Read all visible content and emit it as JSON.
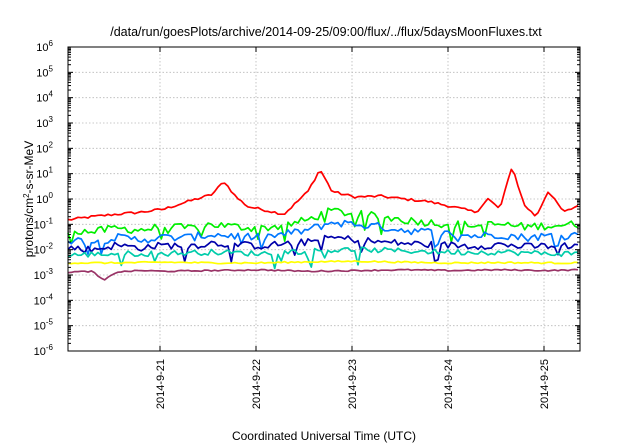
{
  "chart_data": {
    "type": "line",
    "title": "/data/run/goesPlots/archive/2014-09-25/09:00/flux/../flux/5daysMoonFluxes.txt",
    "xlabel": "Coordinated Universal Time (UTC)",
    "ylabel": "protons/cm2-s-sr-MeV",
    "ylabel_parts": {
      "prefix": "protons/cm",
      "sup": "2",
      "suffix": "-s-sr-MeV"
    },
    "y_scale": "log",
    "ylim": [
      1e-06,
      1000000.0
    ],
    "xlim": [
      "2014-09-20T01:00",
      "2014-09-25T09:00"
    ],
    "grid": true,
    "legend": "none",
    "x_ticks": [
      {
        "label": "2014-9-21",
        "value": "2014-09-21T00:00"
      },
      {
        "label": "2014-9-22",
        "value": "2014-09-22T00:00"
      },
      {
        "label": "2014-9-23",
        "value": "2014-09-23T00:00"
      },
      {
        "label": "2014-9-24",
        "value": "2014-09-24T00:00"
      },
      {
        "label": "2014-9-25",
        "value": "2014-09-25T00:00"
      }
    ],
    "y_ticks": [
      {
        "base": "10",
        "exp": "-6",
        "value": 1e-06
      },
      {
        "base": "10",
        "exp": "-5",
        "value": 1e-05
      },
      {
        "base": "10",
        "exp": "-4",
        "value": 0.0001
      },
      {
        "base": "10",
        "exp": "-3",
        "value": 0.001
      },
      {
        "base": "10",
        "exp": "-2",
        "value": 0.01
      },
      {
        "base": "10",
        "exp": "-1",
        "value": 0.1
      },
      {
        "base": "10",
        "exp": "0",
        "value": 1
      },
      {
        "base": "10",
        "exp": "1",
        "value": 10
      },
      {
        "base": "10",
        "exp": "2",
        "value": 100
      },
      {
        "base": "10",
        "exp": "3",
        "value": 1000
      },
      {
        "base": "10",
        "exp": "4",
        "value": 10000
      },
      {
        "base": "10",
        "exp": "5",
        "value": 100000
      },
      {
        "base": "10",
        "exp": "6",
        "value": 1000000
      }
    ],
    "series": [
      {
        "color": "#ff0000",
        "x": [
          "2014-09-20T01:00",
          "2014-09-20T07:00",
          "2014-09-20T13:00",
          "2014-09-20T19:00",
          "2014-09-21T01:00",
          "2014-09-21T07:00",
          "2014-09-21T13:00",
          "2014-09-21T16:00",
          "2014-09-21T19:00",
          "2014-09-21T22:00",
          "2014-09-22T01:00",
          "2014-09-22T07:00",
          "2014-09-22T13:00",
          "2014-09-22T16:00",
          "2014-09-22T19:00",
          "2014-09-22T22:00",
          "2014-09-23T01:00",
          "2014-09-23T07:00",
          "2014-09-23T13:00",
          "2014-09-23T19:00",
          "2014-09-24T01:00",
          "2014-09-24T07:00",
          "2014-09-24T10:00",
          "2014-09-24T13:00",
          "2014-09-24T16:00",
          "2014-09-24T19:00",
          "2014-09-24T22:00",
          "2014-09-25T01:00",
          "2014-09-25T05:00",
          "2014-09-25T09:00"
        ],
        "y": [
          0.15,
          0.2,
          0.25,
          0.3,
          0.4,
          0.8,
          1.5,
          5,
          1.2,
          0.5,
          0.4,
          0.25,
          2,
          15,
          2,
          1.5,
          1.2,
          1.3,
          1,
          0.8,
          0.5,
          0.3,
          1,
          0.4,
          20,
          0.6,
          0.2,
          2,
          0.3,
          0.6
        ]
      },
      {
        "color": "#00ee00",
        "x": [
          "2014-09-20T01:00",
          "2014-09-20T07:00",
          "2014-09-20T13:00",
          "2014-09-20T19:00",
          "2014-09-21T01:00",
          "2014-09-21T07:00",
          "2014-09-21T13:00",
          "2014-09-21T19:00",
          "2014-09-22T01:00",
          "2014-09-22T07:00",
          "2014-09-22T13:00",
          "2014-09-22T19:00",
          "2014-09-23T01:00",
          "2014-09-23T07:00",
          "2014-09-23T13:00",
          "2014-09-23T19:00",
          "2014-09-24T01:00",
          "2014-09-24T07:00",
          "2014-09-24T13:00",
          "2014-09-24T19:00",
          "2014-09-25T01:00",
          "2014-09-25T09:00"
        ],
        "y": [
          0.06,
          0.05,
          0.07,
          0.06,
          0.08,
          0.07,
          0.1,
          0.08,
          0.07,
          0.09,
          0.15,
          0.35,
          0.25,
          0.2,
          0.15,
          0.12,
          0.1,
          0.09,
          0.1,
          0.08,
          0.09,
          0.1
        ]
      },
      {
        "color": "#0077ff",
        "x": [
          "2014-09-20T01:00",
          "2014-09-20T07:00",
          "2014-09-20T13:00",
          "2014-09-20T19:00",
          "2014-09-21T01:00",
          "2014-09-21T07:00",
          "2014-09-21T13:00",
          "2014-09-21T19:00",
          "2014-09-22T01:00",
          "2014-09-22T07:00",
          "2014-09-22T13:00",
          "2014-09-22T19:00",
          "2014-09-23T01:00",
          "2014-09-23T07:00",
          "2014-09-23T13:00",
          "2014-09-23T19:00",
          "2014-09-24T01:00",
          "2014-09-24T07:00",
          "2014-09-24T13:00",
          "2014-09-24T19:00",
          "2014-09-25T01:00",
          "2014-09-25T09:00"
        ],
        "y": [
          0.025,
          0.02,
          0.03,
          0.025,
          0.03,
          0.03,
          0.04,
          0.035,
          0.03,
          0.04,
          0.06,
          0.12,
          0.1,
          0.08,
          0.06,
          0.05,
          0.04,
          0.035,
          0.04,
          0.03,
          0.035,
          0.04
        ]
      },
      {
        "color": "#0000aa",
        "x": [
          "2014-09-20T01:00",
          "2014-09-20T07:00",
          "2014-09-20T13:00",
          "2014-09-20T19:00",
          "2014-09-21T01:00",
          "2014-09-21T07:00",
          "2014-09-21T13:00",
          "2014-09-21T19:00",
          "2014-09-22T01:00",
          "2014-09-22T07:00",
          "2014-09-22T13:00",
          "2014-09-22T19:00",
          "2014-09-23T01:00",
          "2014-09-23T07:00",
          "2014-09-23T13:00",
          "2014-09-23T19:00",
          "2014-09-24T01:00",
          "2014-09-24T07:00",
          "2014-09-24T13:00",
          "2014-09-24T19:00",
          "2014-09-25T01:00",
          "2014-09-25T09:00"
        ],
        "y": [
          0.012,
          0.01,
          0.015,
          0.012,
          0.015,
          0.014,
          0.018,
          0.016,
          0.014,
          0.017,
          0.02,
          0.03,
          0.025,
          0.02,
          0.018,
          0.016,
          0.015,
          0.014,
          0.016,
          0.013,
          0.014,
          0.015
        ]
      },
      {
        "color": "#00ccaa",
        "x": [
          "2014-09-20T01:00",
          "2014-09-20T13:00",
          "2014-09-21T01:00",
          "2014-09-21T13:00",
          "2014-09-22T01:00",
          "2014-09-22T13:00",
          "2014-09-23T01:00",
          "2014-09-23T13:00",
          "2014-09-24T01:00",
          "2014-09-24T13:00",
          "2014-09-25T01:00",
          "2014-09-25T09:00"
        ],
        "y": [
          0.006,
          0.007,
          0.007,
          0.008,
          0.007,
          0.009,
          0.01,
          0.009,
          0.008,
          0.008,
          0.007,
          0.007
        ]
      },
      {
        "color": "#ffff00",
        "x": [
          "2014-09-20T01:00",
          "2014-09-20T13:00",
          "2014-09-21T01:00",
          "2014-09-21T13:00",
          "2014-09-22T01:00",
          "2014-09-22T13:00",
          "2014-09-23T01:00",
          "2014-09-23T13:00",
          "2014-09-24T01:00",
          "2014-09-24T13:00",
          "2014-09-25T01:00",
          "2014-09-25T09:00"
        ],
        "y": [
          0.003,
          0.003,
          0.0032,
          0.003,
          0.003,
          0.0033,
          0.0035,
          0.0032,
          0.003,
          0.0031,
          0.003,
          0.003
        ]
      },
      {
        "color": "#993366",
        "x": [
          "2014-09-20T01:00",
          "2014-09-20T07:00",
          "2014-09-20T10:00",
          "2014-09-20T13:00",
          "2014-09-20T19:00",
          "2014-09-21T01:00",
          "2014-09-21T13:00",
          "2014-09-22T01:00",
          "2014-09-22T13:00",
          "2014-09-23T01:00",
          "2014-09-23T13:00",
          "2014-09-24T01:00",
          "2014-09-24T13:00",
          "2014-09-25T01:00",
          "2014-09-25T09:00"
        ],
        "y": [
          0.0013,
          0.0014,
          0.0006,
          0.0013,
          0.0015,
          0.0014,
          0.0015,
          0.0016,
          0.0014,
          0.0015,
          0.0016,
          0.0015,
          0.0016,
          0.0015,
          0.0016
        ]
      }
    ]
  }
}
